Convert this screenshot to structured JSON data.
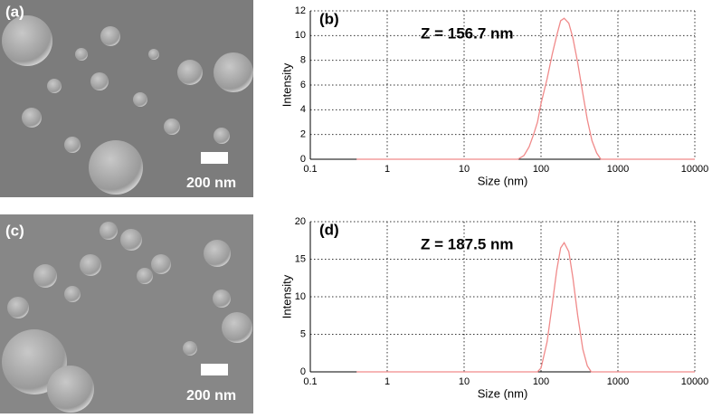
{
  "images": [
    {
      "label": "(a)",
      "scale_bar": "200 nm"
    },
    {
      "label": "(c)",
      "scale_bar": "200 nm"
    }
  ],
  "chart_data": [
    {
      "type": "line",
      "panel_label": "(b)",
      "annotation": "Z = 156.7 nm",
      "x_label": "Size (nm)",
      "y_label": "Intensity",
      "xscale": "log",
      "xlim": [
        0.1,
        10000
      ],
      "xticks": [
        0.1,
        1,
        10,
        100,
        1000,
        10000
      ],
      "ylim": [
        0,
        12
      ],
      "yticks": [
        0,
        2,
        4,
        6,
        8,
        10,
        12
      ],
      "grid": true,
      "color": "#f08a8a",
      "x": [
        0.4,
        50,
        60,
        70,
        80,
        90,
        100,
        120,
        140,
        160,
        180,
        200,
        230,
        260,
        300,
        350,
        400,
        460,
        530,
        600,
        10000
      ],
      "values": [
        0,
        0,
        0.3,
        1,
        2,
        3,
        4.5,
        6.5,
        8.5,
        10,
        11.2,
        11.4,
        11,
        9.8,
        7.8,
        5.3,
        3.2,
        1.5,
        0.5,
        0,
        0
      ]
    },
    {
      "type": "line",
      "panel_label": "(d)",
      "annotation": "Z = 187.5 nm",
      "x_label": "Size (nm)",
      "y_label": "Intensity",
      "xscale": "log",
      "xlim": [
        0.1,
        10000
      ],
      "xticks": [
        0.1,
        1,
        10,
        100,
        1000,
        10000
      ],
      "ylim": [
        0,
        20
      ],
      "yticks": [
        0,
        5,
        10,
        15,
        20
      ],
      "grid": true,
      "color": "#f08a8a",
      "x": [
        0.4,
        90,
        100,
        120,
        140,
        160,
        180,
        200,
        230,
        260,
        300,
        350,
        400,
        450,
        10000
      ],
      "values": [
        0,
        0,
        0.5,
        4,
        9,
        13.5,
        16.5,
        17.2,
        16,
        12.5,
        7.5,
        3,
        0.8,
        0,
        0
      ]
    }
  ]
}
